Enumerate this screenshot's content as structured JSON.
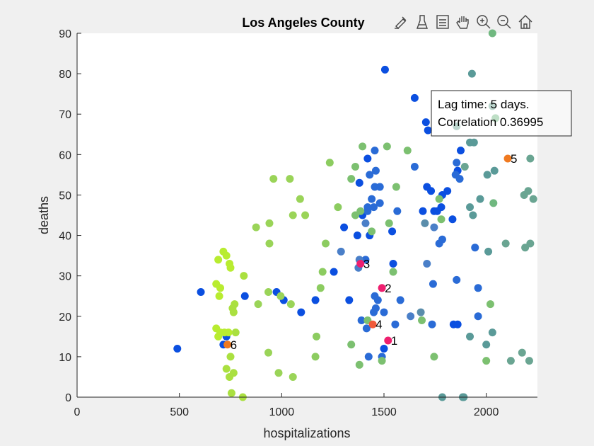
{
  "chart_data": {
    "type": "scatter",
    "title": "Los Angeles County",
    "xlabel": "hospitalizations",
    "ylabel": "deaths",
    "xlim": [
      0,
      2250
    ],
    "ylim": [
      0,
      90
    ],
    "xticks": [
      0,
      500,
      1000,
      1500,
      2000
    ],
    "yticks": [
      0,
      10,
      20,
      30,
      40,
      50,
      60,
      70,
      80,
      90
    ],
    "annotation": {
      "lines": [
        "Lag time: 5 days.",
        "Correlation 0.36995"
      ],
      "anchor": "top-right"
    },
    "labeled_points": [
      {
        "label": "1",
        "x": 1520,
        "y": 14,
        "color": "#ee1f6f"
      },
      {
        "label": "2",
        "x": 1490,
        "y": 27,
        "color": "#ee1f6f"
      },
      {
        "label": "3",
        "x": 1385,
        "y": 33,
        "color": "#ee1f6f"
      },
      {
        "label": "4",
        "x": 1445,
        "y": 18,
        "color": "#f05a3a"
      },
      {
        "label": "5",
        "x": 2105,
        "y": 59,
        "color": "#f07a20"
      },
      {
        "label": "6",
        "x": 735,
        "y": 13,
        "color": "#f07a20"
      }
    ],
    "points": [
      {
        "x": 490,
        "y": 12,
        "c": "#0b4fe0"
      },
      {
        "x": 605,
        "y": 26,
        "c": "#0b4fe0"
      },
      {
        "x": 730,
        "y": 15,
        "c": "#0b4fe0"
      },
      {
        "x": 715,
        "y": 13,
        "c": "#0b4fe0"
      },
      {
        "x": 820,
        "y": 25,
        "c": "#0b4fe0"
      },
      {
        "x": 975,
        "y": 26,
        "c": "#0b4fe0"
      },
      {
        "x": 1010,
        "y": 24,
        "c": "#0b4fe0"
      },
      {
        "x": 1095,
        "y": 21,
        "c": "#0b4fe0"
      },
      {
        "x": 1165,
        "y": 24,
        "c": "#0b4fe0"
      },
      {
        "x": 1255,
        "y": 31,
        "c": "#0b4fe0"
      },
      {
        "x": 1305,
        "y": 42,
        "c": "#0b4fe0"
      },
      {
        "x": 1330,
        "y": 24,
        "c": "#0b4fe0"
      },
      {
        "x": 1370,
        "y": 40,
        "c": "#0b4fe0"
      },
      {
        "x": 1395,
        "y": 45,
        "c": "#0b4fe0"
      },
      {
        "x": 1380,
        "y": 53,
        "c": "#0b4fe0"
      },
      {
        "x": 1420,
        "y": 59,
        "c": "#0b4fe0"
      },
      {
        "x": 1430,
        "y": 40,
        "c": "#0b4fe0"
      },
      {
        "x": 1505,
        "y": 81,
        "c": "#0b4fe0"
      },
      {
        "x": 1500,
        "y": 12,
        "c": "#0b4fe0"
      },
      {
        "x": 1545,
        "y": 33,
        "c": "#0b4fe0"
      },
      {
        "x": 1540,
        "y": 41,
        "c": "#0b4fe0"
      },
      {
        "x": 1650,
        "y": 74,
        "c": "#0b4fe0"
      },
      {
        "x": 1705,
        "y": 68,
        "c": "#0b4fe0"
      },
      {
        "x": 1715,
        "y": 66,
        "c": "#0b4fe0"
      },
      {
        "x": 1690,
        "y": 46,
        "c": "#0b4fe0"
      },
      {
        "x": 1745,
        "y": 46,
        "c": "#0b4fe0"
      },
      {
        "x": 1780,
        "y": 47,
        "c": "#0b4fe0"
      },
      {
        "x": 1840,
        "y": 18,
        "c": "#0b4fe0"
      },
      {
        "x": 1860,
        "y": 18,
        "c": "#0b4fe0"
      },
      {
        "x": 1875,
        "y": 61,
        "c": "#0b4fe0"
      },
      {
        "x": 1860,
        "y": 56,
        "c": "#0b4fe0"
      },
      {
        "x": 1710,
        "y": 52,
        "c": "#0b4fe0"
      },
      {
        "x": 1730,
        "y": 51,
        "c": "#0b4fe0"
      },
      {
        "x": 1785,
        "y": 50,
        "c": "#0b4fe0"
      },
      {
        "x": 1810,
        "y": 51,
        "c": "#0b4fe0"
      },
      {
        "x": 1760,
        "y": 46,
        "c": "#0b4fe0"
      },
      {
        "x": 1835,
        "y": 44,
        "c": "#0b4fe0"
      },
      {
        "x": 1410,
        "y": 34,
        "c": "#2a6bd6"
      },
      {
        "x": 1420,
        "y": 46,
        "c": "#2a6bd6"
      },
      {
        "x": 1440,
        "y": 49,
        "c": "#2a6bd6"
      },
      {
        "x": 1455,
        "y": 52,
        "c": "#2a6bd6"
      },
      {
        "x": 1480,
        "y": 52,
        "c": "#2a6bd6"
      },
      {
        "x": 1460,
        "y": 56,
        "c": "#2a6bd6"
      },
      {
        "x": 1430,
        "y": 55,
        "c": "#2a6bd6"
      },
      {
        "x": 1455,
        "y": 61,
        "c": "#2a6bd6"
      },
      {
        "x": 1480,
        "y": 48,
        "c": "#2a6bd6"
      },
      {
        "x": 1450,
        "y": 47,
        "c": "#2a6bd6"
      },
      {
        "x": 1420,
        "y": 47,
        "c": "#2a6bd6"
      },
      {
        "x": 1390,
        "y": 19,
        "c": "#2a6bd6"
      },
      {
        "x": 1415,
        "y": 17,
        "c": "#2a6bd6"
      },
      {
        "x": 1450,
        "y": 21,
        "c": "#2a6bd6"
      },
      {
        "x": 1460,
        "y": 22,
        "c": "#2a6bd6"
      },
      {
        "x": 1470,
        "y": 24,
        "c": "#2a6bd6"
      },
      {
        "x": 1455,
        "y": 25,
        "c": "#2a6bd6"
      },
      {
        "x": 1500,
        "y": 21,
        "c": "#2a6bd6"
      },
      {
        "x": 1425,
        "y": 10,
        "c": "#2a6bd6"
      },
      {
        "x": 1490,
        "y": 10,
        "c": "#2a6bd6"
      },
      {
        "x": 1555,
        "y": 18,
        "c": "#2a6bd6"
      },
      {
        "x": 1580,
        "y": 24,
        "c": "#2a6bd6"
      },
      {
        "x": 1565,
        "y": 46,
        "c": "#2a6bd6"
      },
      {
        "x": 1650,
        "y": 57,
        "c": "#2a6bd6"
      },
      {
        "x": 1740,
        "y": 28,
        "c": "#2a6bd6"
      },
      {
        "x": 1735,
        "y": 18,
        "c": "#2a6bd6"
      },
      {
        "x": 1770,
        "y": 38,
        "c": "#2a6bd6"
      },
      {
        "x": 1785,
        "y": 39,
        "c": "#2a6bd6"
      },
      {
        "x": 1855,
        "y": 29,
        "c": "#2a6bd6"
      },
      {
        "x": 1870,
        "y": 54,
        "c": "#2a6bd6"
      },
      {
        "x": 1850,
        "y": 55,
        "c": "#2a6bd6"
      },
      {
        "x": 1855,
        "y": 58,
        "c": "#2a6bd6"
      },
      {
        "x": 1945,
        "y": 37,
        "c": "#2a6bd6"
      },
      {
        "x": 1960,
        "y": 27,
        "c": "#2a6bd6"
      },
      {
        "x": 1960,
        "y": 20,
        "c": "#2a6bd6"
      },
      {
        "x": 1290,
        "y": 36,
        "c": "#4a7fc8"
      },
      {
        "x": 1375,
        "y": 32,
        "c": "#4a7fc8"
      },
      {
        "x": 1380,
        "y": 34,
        "c": "#4a7fc8"
      },
      {
        "x": 1410,
        "y": 43,
        "c": "#4a7fc8"
      },
      {
        "x": 1630,
        "y": 20,
        "c": "#4a7fc8"
      },
      {
        "x": 1710,
        "y": 33,
        "c": "#4a7fc8"
      },
      {
        "x": 1745,
        "y": 42,
        "c": "#4a7fc8"
      },
      {
        "x": 1680,
        "y": 21,
        "c": "#5a8dab"
      },
      {
        "x": 1700,
        "y": 43,
        "c": "#5a8dab"
      },
      {
        "x": 1785,
        "y": 0,
        "c": "#5a9a98"
      },
      {
        "x": 1885,
        "y": 0,
        "c": "#5a9a98"
      },
      {
        "x": 1890,
        "y": 0,
        "c": "#5a9a98"
      },
      {
        "x": 1930,
        "y": 80,
        "c": "#5a9a98"
      },
      {
        "x": 1940,
        "y": 63,
        "c": "#5a9a98"
      },
      {
        "x": 1970,
        "y": 49,
        "c": "#5a9a98"
      },
      {
        "x": 1920,
        "y": 47,
        "c": "#5a9a98"
      },
      {
        "x": 1935,
        "y": 45,
        "c": "#5a9a98"
      },
      {
        "x": 2005,
        "y": 55,
        "c": "#5a9a98"
      },
      {
        "x": 2040,
        "y": 56,
        "c": "#5a9a98"
      },
      {
        "x": 2010,
        "y": 36,
        "c": "#5a9a98"
      },
      {
        "x": 2000,
        "y": 13,
        "c": "#5a9a98"
      },
      {
        "x": 1920,
        "y": 15,
        "c": "#5a9a98"
      },
      {
        "x": 2030,
        "y": 16,
        "c": "#5a9a98"
      },
      {
        "x": 1895,
        "y": 57,
        "c": "#6aa592"
      },
      {
        "x": 2030,
        "y": 72,
        "c": "#6aa592"
      },
      {
        "x": 2095,
        "y": 38,
        "c": "#6aa592"
      },
      {
        "x": 2120,
        "y": 9,
        "c": "#6aa592"
      },
      {
        "x": 2175,
        "y": 11,
        "c": "#6aa592"
      },
      {
        "x": 2210,
        "y": 9,
        "c": "#6aa592"
      },
      {
        "x": 2190,
        "y": 37,
        "c": "#6aa592"
      },
      {
        "x": 2215,
        "y": 38,
        "c": "#6aa592"
      },
      {
        "x": 2185,
        "y": 50,
        "c": "#6aa592"
      },
      {
        "x": 2205,
        "y": 51,
        "c": "#6aa592"
      },
      {
        "x": 2230,
        "y": 49,
        "c": "#6aa592"
      },
      {
        "x": 2215,
        "y": 59,
        "c": "#6aa592"
      },
      {
        "x": 1855,
        "y": 67,
        "c": "#6aa592"
      },
      {
        "x": 2030,
        "y": 90,
        "c": "#70b880"
      },
      {
        "x": 2045,
        "y": 69,
        "c": "#70b880"
      },
      {
        "x": 2035,
        "y": 48,
        "c": "#70b880"
      },
      {
        "x": 1920,
        "y": 63,
        "c": "#5a9a98"
      },
      {
        "x": 2020,
        "y": 23,
        "c": "#7cc070"
      },
      {
        "x": 2000,
        "y": 9,
        "c": "#7cc070"
      },
      {
        "x": 1770,
        "y": 49,
        "c": "#7cc070"
      },
      {
        "x": 1780,
        "y": 44,
        "c": "#7cc070"
      },
      {
        "x": 1745,
        "y": 10,
        "c": "#7cc070"
      },
      {
        "x": 1685,
        "y": 19,
        "c": "#7cc070"
      },
      {
        "x": 1615,
        "y": 61,
        "c": "#7cc070"
      },
      {
        "x": 1560,
        "y": 52,
        "c": "#7cc070"
      },
      {
        "x": 1515,
        "y": 62,
        "c": "#7cc070"
      },
      {
        "x": 1525,
        "y": 43,
        "c": "#7cc070"
      },
      {
        "x": 1545,
        "y": 31,
        "c": "#7cc070"
      },
      {
        "x": 1490,
        "y": 9,
        "c": "#7cc070"
      },
      {
        "x": 1395,
        "y": 62,
        "c": "#7cc070"
      },
      {
        "x": 1360,
        "y": 57,
        "c": "#7cc070"
      },
      {
        "x": 1340,
        "y": 54,
        "c": "#7cc070"
      },
      {
        "x": 1360,
        "y": 45,
        "c": "#7cc070"
      },
      {
        "x": 1385,
        "y": 46,
        "c": "#7cc070"
      },
      {
        "x": 1440,
        "y": 41,
        "c": "#7cc070"
      },
      {
        "x": 1380,
        "y": 8,
        "c": "#7cc070"
      },
      {
        "x": 1340,
        "y": 13,
        "c": "#7cc070"
      },
      {
        "x": 1420,
        "y": 19,
        "c": "#7cc070"
      },
      {
        "x": 1275,
        "y": 47,
        "c": "#8ccc60"
      },
      {
        "x": 1235,
        "y": 58,
        "c": "#8ccc60"
      },
      {
        "x": 1215,
        "y": 38,
        "c": "#8ccc60"
      },
      {
        "x": 1200,
        "y": 31,
        "c": "#8ccc60"
      },
      {
        "x": 1190,
        "y": 27,
        "c": "#8ccc60"
      },
      {
        "x": 1170,
        "y": 15,
        "c": "#8ccc60"
      },
      {
        "x": 1165,
        "y": 10,
        "c": "#8ccc60"
      },
      {
        "x": 1115,
        "y": 45,
        "c": "#9ad458"
      },
      {
        "x": 1090,
        "y": 49,
        "c": "#9ad458"
      },
      {
        "x": 1055,
        "y": 45,
        "c": "#9ad458"
      },
      {
        "x": 1040,
        "y": 54,
        "c": "#9ad458"
      },
      {
        "x": 960,
        "y": 54,
        "c": "#9ad458"
      },
      {
        "x": 940,
        "y": 43,
        "c": "#9ad458"
      },
      {
        "x": 875,
        "y": 42,
        "c": "#9ad458"
      },
      {
        "x": 940,
        "y": 38,
        "c": "#9ad458"
      },
      {
        "x": 1045,
        "y": 23,
        "c": "#9ad458"
      },
      {
        "x": 995,
        "y": 25,
        "c": "#9ad458"
      },
      {
        "x": 935,
        "y": 26,
        "c": "#9ad458"
      },
      {
        "x": 885,
        "y": 23,
        "c": "#9ad458"
      },
      {
        "x": 985,
        "y": 6,
        "c": "#9ad458"
      },
      {
        "x": 1055,
        "y": 5,
        "c": "#9ad458"
      },
      {
        "x": 935,
        "y": 11,
        "c": "#9ad458"
      },
      {
        "x": 815,
        "y": 30,
        "c": "#aae040"
      },
      {
        "x": 770,
        "y": 23,
        "c": "#aae040"
      },
      {
        "x": 760,
        "y": 22,
        "c": "#aae040"
      },
      {
        "x": 765,
        "y": 21,
        "c": "#aae040"
      },
      {
        "x": 775,
        "y": 16,
        "c": "#aae040"
      },
      {
        "x": 810,
        "y": 0,
        "c": "#aae040"
      },
      {
        "x": 755,
        "y": 1,
        "c": "#aae040"
      },
      {
        "x": 765,
        "y": 6,
        "c": "#aae040"
      },
      {
        "x": 745,
        "y": 5,
        "c": "#aae040"
      },
      {
        "x": 730,
        "y": 7,
        "c": "#aae040"
      },
      {
        "x": 750,
        "y": 10,
        "c": "#aae040"
      },
      {
        "x": 715,
        "y": 36,
        "c": "#b8ec30"
      },
      {
        "x": 730,
        "y": 35,
        "c": "#b8ec30"
      },
      {
        "x": 690,
        "y": 34,
        "c": "#b8ec30"
      },
      {
        "x": 745,
        "y": 33,
        "c": "#b8ec30"
      },
      {
        "x": 750,
        "y": 32,
        "c": "#b8ec30"
      },
      {
        "x": 680,
        "y": 28,
        "c": "#b8ec30"
      },
      {
        "x": 700,
        "y": 27,
        "c": "#b8ec30"
      },
      {
        "x": 695,
        "y": 25,
        "c": "#b8ec30"
      },
      {
        "x": 680,
        "y": 17,
        "c": "#b8ec30"
      },
      {
        "x": 720,
        "y": 16,
        "c": "#b8ec30"
      },
      {
        "x": 700,
        "y": 16,
        "c": "#b8ec30"
      },
      {
        "x": 740,
        "y": 16,
        "c": "#b8ec30"
      },
      {
        "x": 690,
        "y": 15,
        "c": "#b8ec30"
      }
    ]
  },
  "toolbar": {
    "buttons": [
      {
        "name": "brush-data-icon",
        "label": "Brush"
      },
      {
        "name": "data-tips-icon",
        "label": "Data tips"
      },
      {
        "name": "legend-icon",
        "label": "Legend"
      },
      {
        "name": "pan-hand-icon",
        "label": "Pan"
      },
      {
        "name": "zoom-in-icon",
        "label": "Zoom in"
      },
      {
        "name": "zoom-out-icon",
        "label": "Zoom out"
      },
      {
        "name": "home-restore-icon",
        "label": "Restore view"
      }
    ]
  }
}
